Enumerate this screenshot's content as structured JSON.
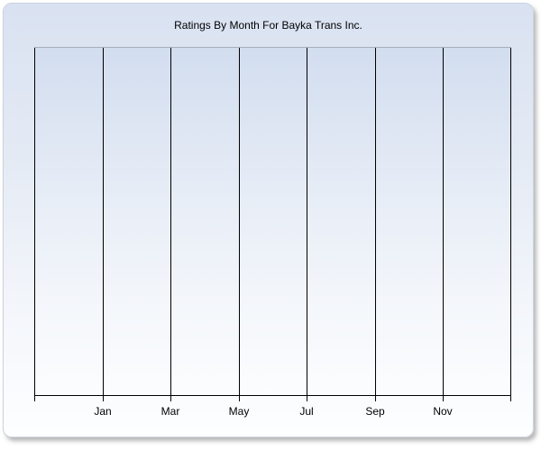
{
  "panel": {
    "background_top_color": "#d9e2f2",
    "background_bottom_color": "#fdfeff",
    "border_color": "#ccd3de",
    "shadow_color": "#7d7d7d"
  },
  "chart_data": {
    "type": "line",
    "title": "Ratings By Month For Bayka Trans Inc.",
    "x_tick_labels": [
      "Jan",
      "Mar",
      "May",
      "Jul",
      "Sep",
      "Nov"
    ],
    "x_columns": 7,
    "series": [],
    "y_tick_labels": [],
    "grid": "vertical gridlines only, plot area empty (no data plotted)",
    "legend": "none",
    "gridline_color": "#000000",
    "axis_color": "#000000",
    "plot_top_border_color": "#a7afbd",
    "plot_background_top": "#d2ddef",
    "plot_background_bottom": "#fbfdfe",
    "text_color": "#000000"
  }
}
